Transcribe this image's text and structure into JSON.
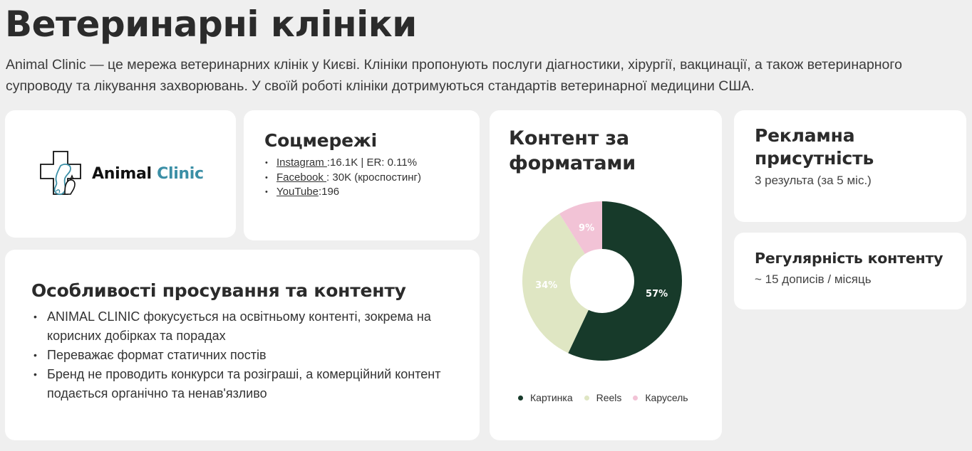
{
  "page": {
    "title": "Ветеринарні клініки",
    "description": "Animal Clinic — це мережа ветеринарних клінік у Києві. Клініки пропонують послуги діагностики, хірургії, вакцинації, а також ветеринарного супроводу та лікування захворювань. У своїй роботі клініки дотримуються стандартів ветеринарної медицини США."
  },
  "logo": {
    "word1": "Animal",
    "word2": "Clinic",
    "icon": "clinic-cross-pets-icon",
    "accent": "#3b8fa6"
  },
  "social": {
    "title": "Соцмережі",
    "items": [
      {
        "link": "Instagram ",
        "text": ":16.1K | ER: 0.11%"
      },
      {
        "link": "Facebook ",
        "text": ": 30K (кроспостинг)"
      },
      {
        "link": "YouTube",
        "text": ":196"
      }
    ]
  },
  "features": {
    "title": "Особливості просування та контенту",
    "items": [
      "ANIMAL CLINIC фокусується на освітньому контенті, зокрема на корисних добірках та порадах",
      "Переважає формат статичних постів",
      "Бренд не проводить конкурси та розіграші, а комерційний контент подається органічно та ненав'язливо"
    ]
  },
  "content_formats": {
    "title": "Контент за форматами"
  },
  "chart_data": {
    "type": "pie",
    "title": "Контент за форматами",
    "donut": true,
    "categories": [
      "Картинка",
      "Reels",
      "Карусель"
    ],
    "values": [
      57,
      34,
      9
    ],
    "labels": [
      "57%",
      "34%",
      "9%"
    ],
    "colors": [
      "#173a2a",
      "#dfe6c3",
      "#f2c3d6"
    ],
    "label_colors": [
      "#ffffff",
      "#ffffff",
      "#ffffff"
    ],
    "legend": "bottom"
  },
  "ads": {
    "title": "Рекламна присутність",
    "value": "3 результа (за 5 міс.)"
  },
  "regularity": {
    "title": "Регулярність контенту",
    "value": "~ 15 дописів / місяць"
  }
}
